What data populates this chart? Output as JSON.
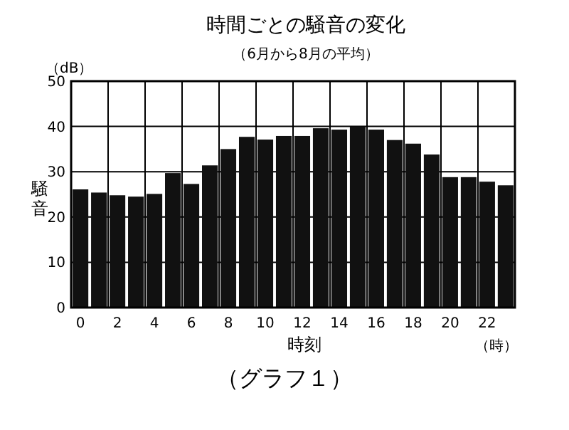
{
  "chart_data": {
    "type": "bar",
    "title": "時間ごとの騒音の変化",
    "subtitle": "（6月から8月の平均）",
    "xlabel": "時刻",
    "ylabel": "騒音",
    "categories": [
      "0",
      null,
      "2",
      null,
      "4",
      null,
      "6",
      null,
      "8",
      null,
      "10",
      null,
      "12",
      null,
      "14",
      null,
      "16",
      null,
      "18",
      null,
      "20",
      null,
      "22",
      null
    ],
    "values": [
      26.1,
      25.4,
      24.8,
      24.5,
      25.1,
      29.7,
      27.3,
      31.4,
      35,
      37.7,
      37.1,
      37.9,
      37.9,
      39.6,
      39.3,
      40,
      39.3,
      37,
      36.2,
      33.8,
      28.8,
      28.8,
      27.8,
      27
    ],
    "color": "#111111",
    "ylim": [
      0,
      50
    ],
    "yticks": [
      0,
      10,
      20,
      30,
      40,
      50
    ],
    "grid": true,
    "annotations": [
      "（dB）",
      "（時）",
      "（グラフ１）"
    ]
  }
}
